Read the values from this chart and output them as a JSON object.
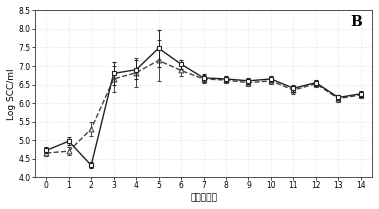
{
  "title_label": "B",
  "xlabel": "感染后挟奶",
  "ylabel": "Log SCC/ml",
  "xlim": [
    -0.5,
    14.5
  ],
  "ylim": [
    4.0,
    8.5
  ],
  "yticks": [
    4.0,
    4.5,
    5.0,
    5.5,
    6.0,
    6.5,
    7.0,
    7.5,
    8.0,
    8.5
  ],
  "xticks": [
    0,
    1,
    2,
    3,
    4,
    5,
    6,
    7,
    8,
    9,
    10,
    11,
    12,
    13,
    14
  ],
  "series1": {
    "x": [
      0,
      1,
      2,
      3,
      4,
      5,
      6,
      7,
      8,
      9,
      10,
      11,
      12,
      13,
      14
    ],
    "y": [
      4.72,
      4.97,
      4.32,
      6.8,
      6.9,
      7.48,
      7.05,
      6.68,
      6.65,
      6.6,
      6.65,
      6.4,
      6.55,
      6.15,
      6.25
    ],
    "yerr": [
      0.08,
      0.1,
      0.08,
      0.3,
      0.25,
      0.5,
      0.12,
      0.1,
      0.08,
      0.08,
      0.08,
      0.1,
      0.08,
      0.08,
      0.08
    ],
    "marker": "s",
    "linestyle": "-",
    "color": "#222222",
    "markersize": 3.5,
    "linewidth": 1.0
  },
  "series2": {
    "x": [
      0,
      1,
      2,
      3,
      4,
      5,
      6,
      7,
      8,
      9,
      10,
      11,
      12,
      13,
      14
    ],
    "y": [
      4.65,
      4.7,
      5.3,
      6.65,
      6.82,
      7.15,
      6.88,
      6.65,
      6.62,
      6.55,
      6.6,
      6.35,
      6.52,
      6.12,
      6.22
    ],
    "yerr": [
      0.08,
      0.1,
      0.2,
      0.35,
      0.4,
      0.55,
      0.15,
      0.1,
      0.08,
      0.08,
      0.08,
      0.1,
      0.08,
      0.08,
      0.08
    ],
    "marker": "^",
    "linestyle": "--",
    "color": "#444444",
    "markersize": 3.5,
    "linewidth": 1.0
  },
  "background_color": "#ffffff",
  "panel_bg": "#ffffff",
  "grid_color": "#cccccc",
  "title_fontsize": 10,
  "label_fontsize": 6.5,
  "tick_fontsize": 5.5
}
